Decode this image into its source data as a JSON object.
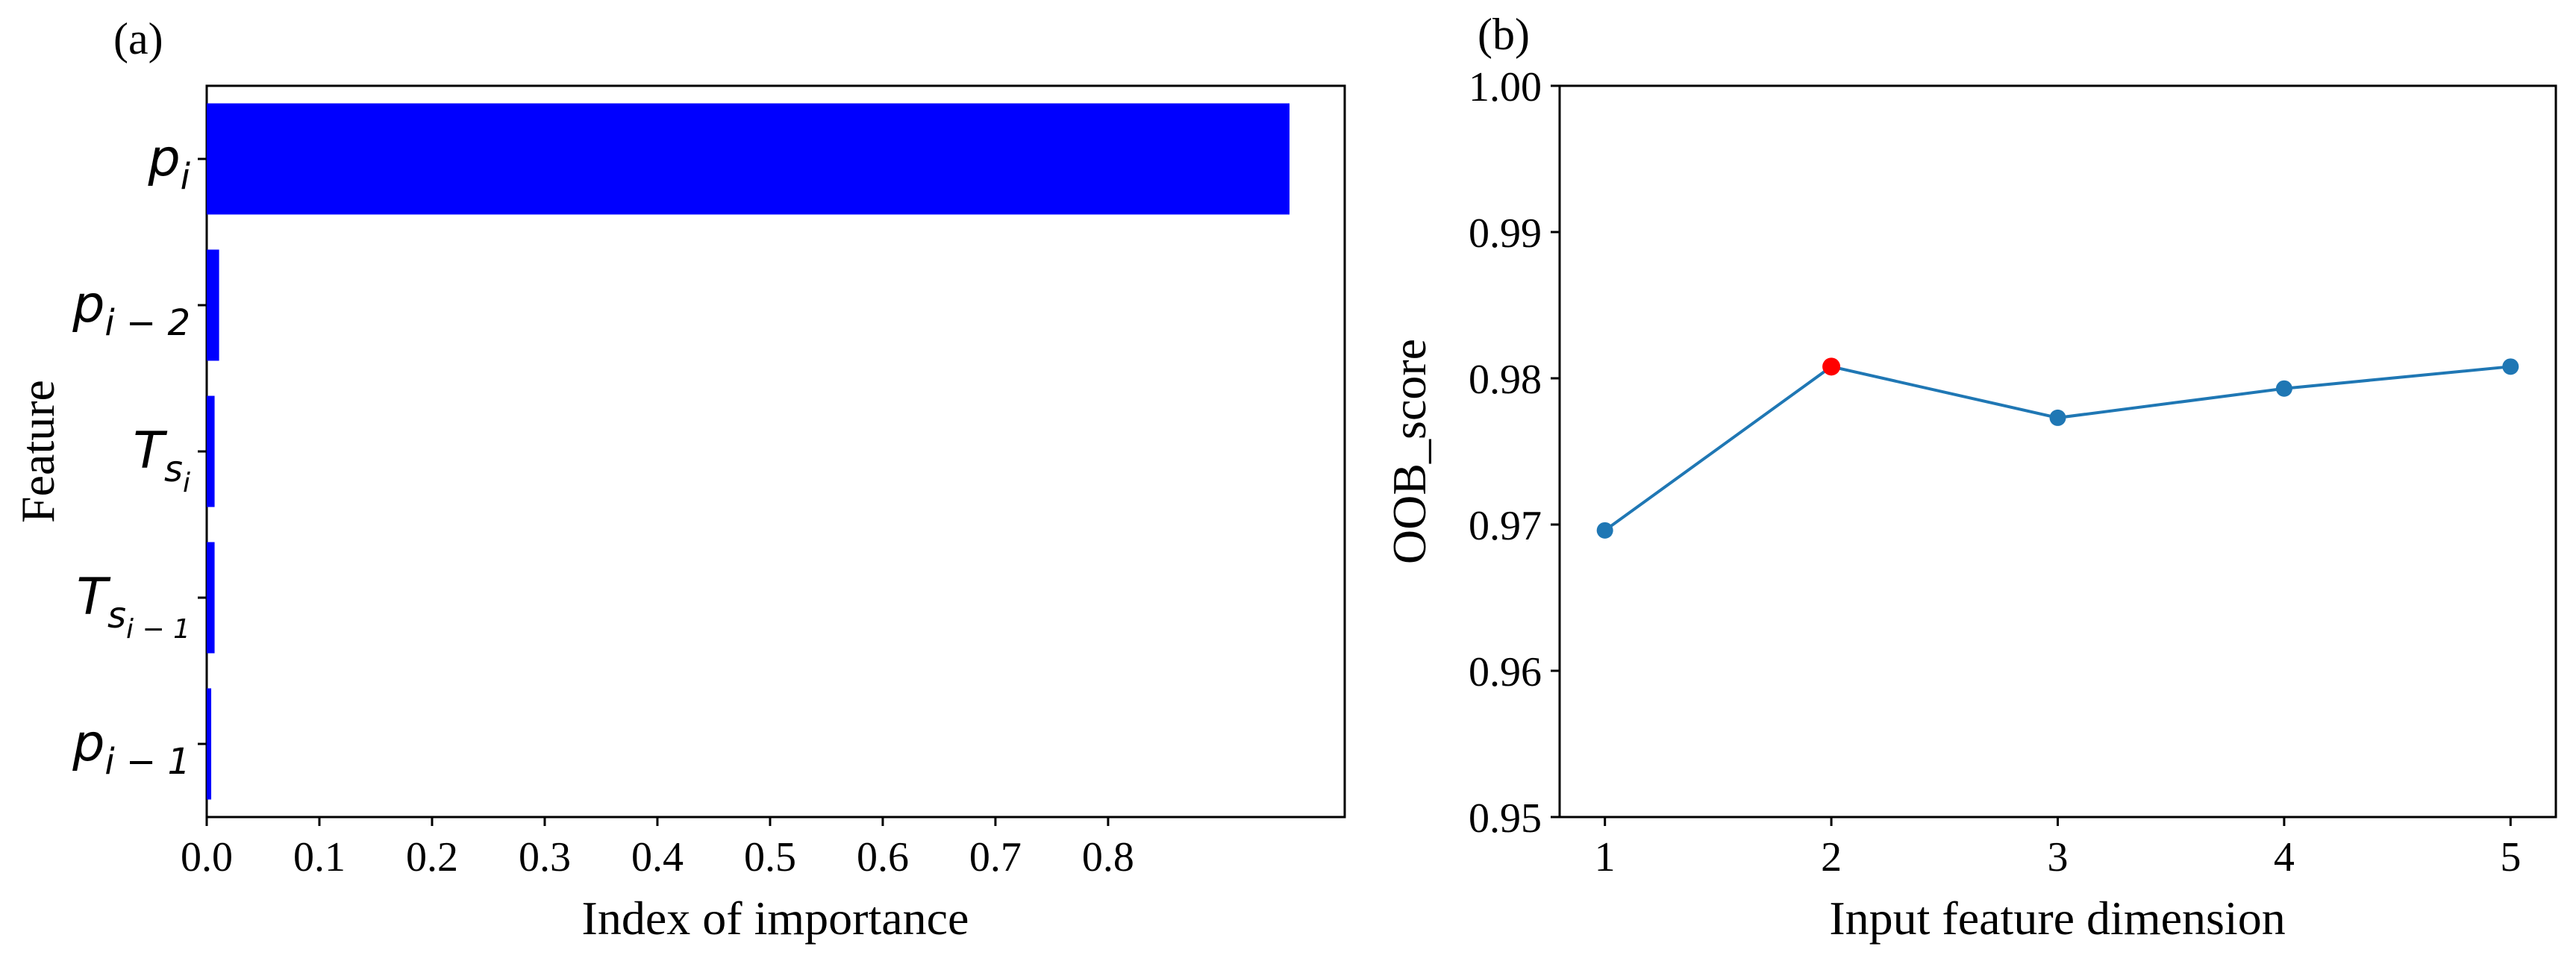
{
  "panels": {
    "a": "(a)",
    "b": "(b)"
  },
  "chart_data": [
    {
      "type": "bar",
      "orientation": "horizontal",
      "panel": "(a)",
      "categories": [
        "p_i",
        "p_{i-2}",
        "T_{s_i}",
        "T_{s_{i-1}}",
        "p_{i-1}"
      ],
      "category_display": [
        {
          "base": "p",
          "sub": "i",
          "subsub": ""
        },
        {
          "base": "p",
          "sub": "i − 2",
          "subsub": ""
        },
        {
          "base": "T",
          "sub": "s",
          "subsub": "i"
        },
        {
          "base": "T",
          "sub": "s",
          "subsub": "i − 1"
        },
        {
          "base": "p",
          "sub": "i − 1",
          "subsub": ""
        }
      ],
      "values": [
        0.961,
        0.011,
        0.007,
        0.007,
        0.004
      ],
      "xlabel": "Index of importance",
      "ylabel": "Feature",
      "xlim": [
        0,
        1.01
      ],
      "xticks": [
        0.0,
        0.1,
        0.2,
        0.3,
        0.4,
        0.5,
        0.6,
        0.7,
        0.8
      ],
      "xtick_labels": [
        "0.0",
        "0.1",
        "0.2",
        "0.3",
        "0.4",
        "0.5",
        "0.6",
        "0.7",
        "0.8"
      ],
      "bar_color": "#0000ff",
      "grid": false
    },
    {
      "type": "line",
      "panel": "(b)",
      "x": [
        1,
        2,
        3,
        4,
        5
      ],
      "y": [
        0.9696,
        0.9808,
        0.9773,
        0.9793,
        0.9808
      ],
      "highlight_index": 1,
      "xlabel": "Input feature dimension",
      "ylabel": "OOB_score",
      "xlim": [
        0.8,
        5.2
      ],
      "ylim": [
        0.95,
        1.0
      ],
      "xticks": [
        1,
        2,
        3,
        4,
        5
      ],
      "xtick_labels": [
        "1",
        "2",
        "3",
        "4",
        "5"
      ],
      "yticks": [
        0.95,
        0.96,
        0.97,
        0.98,
        0.99,
        1.0
      ],
      "ytick_labels": [
        "0.95",
        "0.96",
        "0.97",
        "0.98",
        "0.99",
        "1.00"
      ],
      "line_color": "#1f77b4",
      "highlight_color": "#ff0000",
      "grid": false
    }
  ]
}
